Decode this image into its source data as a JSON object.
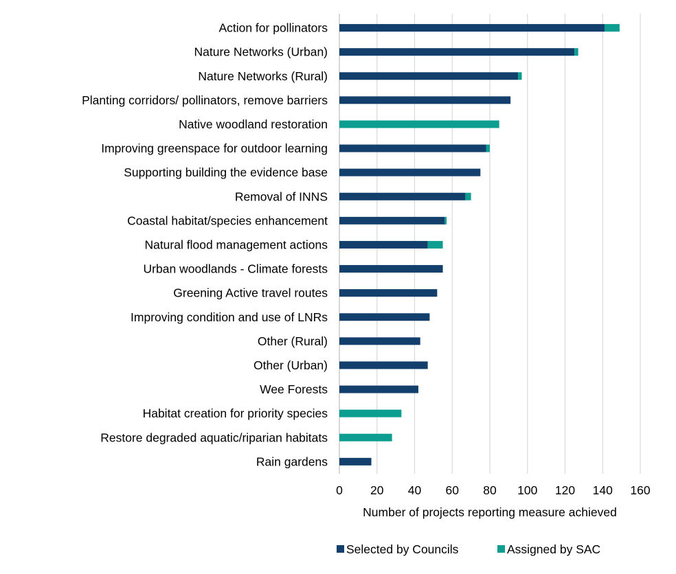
{
  "chart_data": {
    "type": "bar",
    "orientation": "horizontal",
    "stacked": true,
    "categories": [
      "Action for pollinators",
      "Nature Networks (Urban)",
      "Nature Networks (Rural)",
      "Planting corridors/ pollinators, remove barriers",
      "Native woodland restoration",
      "Improving greenspace for outdoor learning",
      "Supporting building the evidence base",
      "Removal of INNS",
      "Coastal habitat/species enhancement",
      "Natural flood management actions",
      "Urban woodlands - Climate forests",
      "Greening Active travel routes",
      "Improving condition and use of LNRs",
      "Other (Rural)",
      "Other (Urban)",
      "Wee Forests",
      "Habitat creation for priority species",
      "Restore degraded aquatic/riparian habitats",
      "Rain gardens"
    ],
    "series": [
      {
        "name": "Selected by Councils",
        "color": "#123f6b",
        "values": [
          141,
          125,
          95,
          91,
          0,
          78,
          75,
          67,
          56,
          47,
          55,
          52,
          48,
          43,
          47,
          42,
          0,
          0,
          17
        ]
      },
      {
        "name": "Assigned by SAC",
        "color": "#0e9e91",
        "values": [
          8,
          2,
          2,
          0,
          85,
          2,
          0,
          3,
          1,
          8,
          0,
          0,
          0,
          0,
          0,
          0,
          33,
          28,
          0
        ]
      }
    ],
    "xlabel": "Number of projects reporting measure achieved",
    "ylabel": "",
    "xlim": [
      0,
      160
    ],
    "xticks": [
      0,
      20,
      40,
      60,
      80,
      100,
      120,
      140,
      160
    ],
    "grid": "vertical",
    "grid_color": "#d9d9d9",
    "legend_position": "bottom"
  }
}
